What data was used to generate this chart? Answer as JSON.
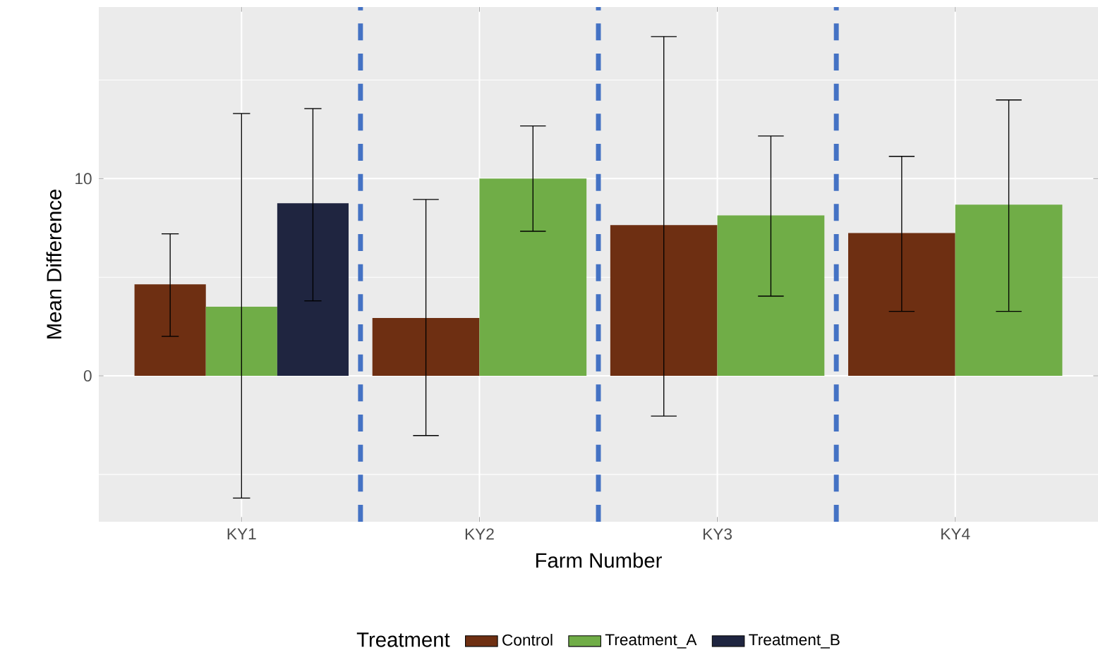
{
  "chart_data": {
    "type": "bar",
    "xlabel": "Farm Number",
    "ylabel": "Mean Difference",
    "legend_title": "Treatment",
    "categories": [
      "KY1",
      "KY2",
      "KY3",
      "KY4"
    ],
    "series": [
      {
        "name": "Control",
        "color": "#6e2f12",
        "values": [
          4.64,
          2.93,
          7.64,
          7.24
        ],
        "errors": [
          [
            2.0,
            7.2
          ],
          [
            -3.03,
            8.94
          ],
          [
            -2.04,
            17.2
          ],
          [
            3.27,
            11.13
          ]
        ]
      },
      {
        "name": "Treatment_A",
        "color": "#70ad47",
        "values": [
          3.5,
          10.0,
          8.13,
          8.68
        ],
        "errors": [
          [
            -6.2,
            13.3
          ],
          [
            7.33,
            12.67
          ],
          [
            4.04,
            12.16
          ],
          [
            3.27,
            13.99
          ]
        ]
      },
      {
        "name": "Treatment_B",
        "color": "#1f2540",
        "values": [
          8.75,
          null,
          null,
          null
        ],
        "errors": [
          [
            3.8,
            13.55
          ],
          null,
          null,
          null
        ]
      }
    ],
    "ylim": [
      -7.4,
      18.7
    ],
    "yticks": [
      0,
      10
    ],
    "grid": true,
    "legend": "bottom"
  }
}
